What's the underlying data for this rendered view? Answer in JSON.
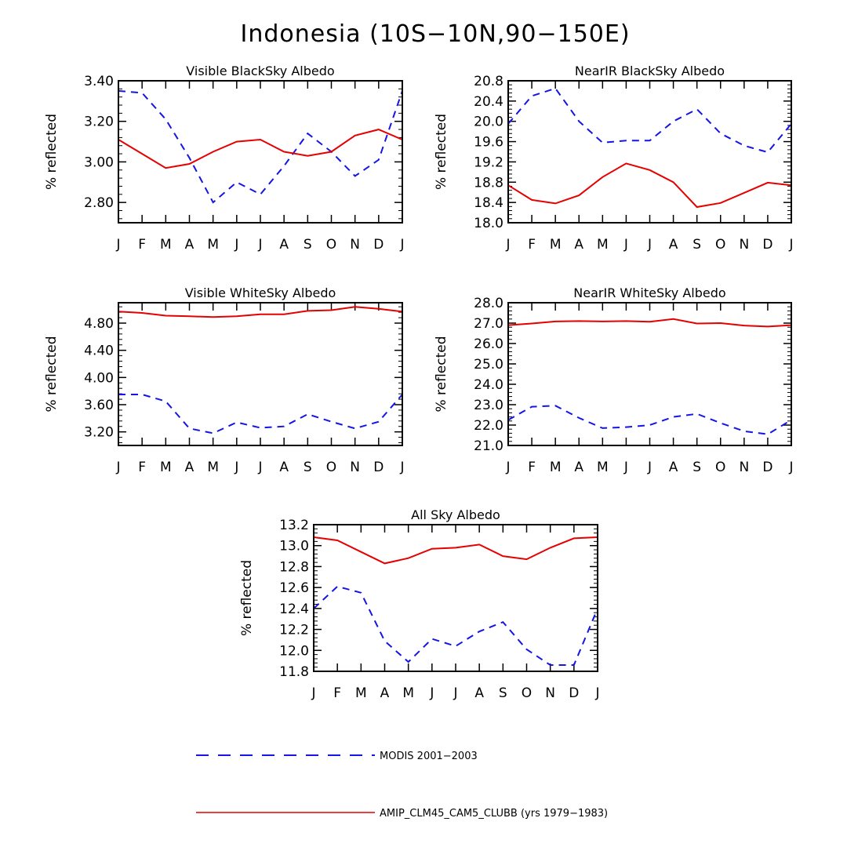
{
  "figure_title": "Indonesia (10S−10N,90−150E)",
  "legend": {
    "modis_label": "MODIS 2001−2003",
    "model_label": "AMIP_CLM45_CAM5_CLUBB (yrs 1979−1983)"
  },
  "colors": {
    "modis": "#1515e6",
    "model": "#e60000"
  },
  "chart_data": [
    {
      "type": "line",
      "title": "Visible BlackSky Albedo",
      "ylabel": "% reflected",
      "categories": [
        "J",
        "F",
        "M",
        "A",
        "M",
        "J",
        "J",
        "A",
        "S",
        "O",
        "N",
        "D",
        "J"
      ],
      "ylim": [
        2.7,
        3.4
      ],
      "yticks": [
        2.8,
        3.0,
        3.2,
        3.4
      ],
      "ytick_labels": [
        "2.80",
        "3.00",
        "3.20",
        "3.40"
      ],
      "series": [
        {
          "name": "MODIS 2001−2003",
          "style": "dashed",
          "values": [
            3.35,
            3.34,
            3.21,
            3.02,
            2.8,
            2.9,
            2.84,
            2.98,
            3.14,
            3.05,
            2.93,
            3.01,
            3.35
          ]
        },
        {
          "name": "AMIP_CLM45_CAM5_CLUBB (yrs 1979−1983)",
          "style": "solid",
          "values": [
            3.11,
            3.04,
            2.97,
            2.99,
            3.05,
            3.1,
            3.11,
            3.05,
            3.03,
            3.05,
            3.13,
            3.16,
            3.11
          ]
        }
      ]
    },
    {
      "type": "line",
      "title": "NearIR BlackSky Albedo",
      "ylabel": "% reflected",
      "categories": [
        "J",
        "F",
        "M",
        "A",
        "M",
        "J",
        "J",
        "A",
        "S",
        "O",
        "N",
        "D",
        "J"
      ],
      "ylim": [
        18.0,
        20.8
      ],
      "yticks": [
        18.0,
        18.4,
        18.8,
        19.2,
        19.6,
        20.0,
        20.4,
        20.8
      ],
      "ytick_labels": [
        "18.0",
        "18.4",
        "18.8",
        "19.2",
        "19.6",
        "20.0",
        "20.4",
        "20.8"
      ],
      "series": [
        {
          "name": "MODIS 2001−2003",
          "style": "dashed",
          "values": [
            19.95,
            20.5,
            20.65,
            20.0,
            19.58,
            19.62,
            19.62,
            20.0,
            20.24,
            19.76,
            19.52,
            19.39,
            19.95
          ]
        },
        {
          "name": "AMIP_CLM45_CAM5_CLUBB (yrs 1979−1983)",
          "style": "solid",
          "values": [
            18.74,
            18.45,
            18.38,
            18.54,
            18.9,
            19.17,
            19.04,
            18.8,
            18.31,
            18.39,
            18.59,
            18.79,
            18.74
          ]
        }
      ]
    },
    {
      "type": "line",
      "title": "Visible WhiteSky Albedo",
      "ylabel": "% reflected",
      "categories": [
        "J",
        "F",
        "M",
        "A",
        "M",
        "J",
        "J",
        "A",
        "S",
        "O",
        "N",
        "D",
        "J"
      ],
      "ylim": [
        3.0,
        5.1
      ],
      "yticks": [
        3.2,
        3.6,
        4.0,
        4.4,
        4.8
      ],
      "ytick_labels": [
        "3.20",
        "3.60",
        "4.00",
        "4.40",
        "4.80"
      ],
      "series": [
        {
          "name": "MODIS 2001−2003",
          "style": "dashed",
          "values": [
            3.75,
            3.75,
            3.65,
            3.25,
            3.18,
            3.34,
            3.26,
            3.28,
            3.46,
            3.35,
            3.25,
            3.35,
            3.75
          ]
        },
        {
          "name": "AMIP_CLM45_CAM5_CLUBB (yrs 1979−1983)",
          "style": "solid",
          "values": [
            4.97,
            4.95,
            4.91,
            4.9,
            4.89,
            4.9,
            4.93,
            4.93,
            4.98,
            4.99,
            5.04,
            5.01,
            4.97
          ]
        }
      ]
    },
    {
      "type": "line",
      "title": "NearIR WhiteSky Albedo",
      "ylabel": "% reflected",
      "categories": [
        "J",
        "F",
        "M",
        "A",
        "M",
        "J",
        "J",
        "A",
        "S",
        "O",
        "N",
        "D",
        "J"
      ],
      "ylim": [
        21.0,
        28.0
      ],
      "yticks": [
        21.0,
        22.0,
        23.0,
        24.0,
        25.0,
        26.0,
        27.0,
        28.0
      ],
      "ytick_labels": [
        "21.0",
        "22.0",
        "23.0",
        "24.0",
        "25.0",
        "26.0",
        "27.0",
        "28.0"
      ],
      "series": [
        {
          "name": "MODIS 2001−2003",
          "style": "dashed",
          "values": [
            22.25,
            22.9,
            22.95,
            22.35,
            21.85,
            21.9,
            22.0,
            22.4,
            22.55,
            22.1,
            21.7,
            21.55,
            22.25
          ]
        },
        {
          "name": "AMIP_CLM45_CAM5_CLUBB (yrs 1979−1983)",
          "style": "solid",
          "values": [
            26.9,
            26.98,
            27.08,
            27.1,
            27.08,
            27.1,
            27.07,
            27.2,
            26.98,
            27.0,
            26.88,
            26.83,
            26.9
          ]
        }
      ]
    },
    {
      "type": "line",
      "title": "All Sky Albedo",
      "ylabel": "% reflected",
      "categories": [
        "J",
        "F",
        "M",
        "A",
        "M",
        "J",
        "J",
        "A",
        "S",
        "O",
        "N",
        "D",
        "J"
      ],
      "ylim": [
        11.8,
        13.2
      ],
      "yticks": [
        11.8,
        12.0,
        12.2,
        12.4,
        12.6,
        12.8,
        13.0,
        13.2
      ],
      "ytick_labels": [
        "11.8",
        "12.0",
        "12.2",
        "12.4",
        "12.6",
        "12.8",
        "13.0",
        "13.2"
      ],
      "series": [
        {
          "name": "MODIS 2001−2003",
          "style": "dashed",
          "values": [
            12.4,
            12.61,
            12.55,
            12.09,
            11.89,
            12.11,
            12.04,
            12.18,
            12.27,
            12.01,
            11.86,
            11.86,
            12.4
          ]
        },
        {
          "name": "AMIP_CLM45_CAM5_CLUBB (yrs 1979−1983)",
          "style": "solid",
          "values": [
            13.08,
            13.05,
            12.94,
            12.83,
            12.88,
            12.97,
            12.98,
            13.01,
            12.9,
            12.87,
            12.98,
            13.07,
            13.08
          ]
        }
      ]
    }
  ]
}
